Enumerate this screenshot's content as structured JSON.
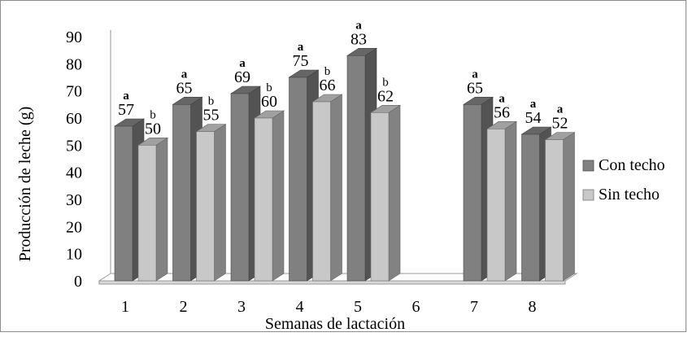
{
  "chart_data": {
    "type": "bar",
    "title": "",
    "xlabel": "Semanas de lactación",
    "ylabel": "Producción de leche (g)",
    "ylim": [
      0,
      90
    ],
    "yticks": [
      0,
      10,
      20,
      30,
      40,
      50,
      60,
      70,
      80,
      90
    ],
    "categories": [
      "1",
      "2",
      "3",
      "4",
      "5",
      "6",
      "7",
      "8"
    ],
    "series": [
      {
        "name": "Con techo",
        "color": "#808080",
        "values": [
          57,
          65,
          69,
          75,
          83,
          null,
          65,
          54
        ],
        "letters": [
          "a",
          "a",
          "a",
          "a",
          "a",
          "",
          "a",
          "a"
        ]
      },
      {
        "name": "Sin techo",
        "color": "#c8c8c8",
        "values": [
          50,
          55,
          60,
          66,
          62,
          null,
          56,
          52
        ],
        "letters": [
          "b",
          "b",
          "b",
          "b",
          "b",
          "",
          "a",
          "a"
        ]
      }
    ],
    "legend_position": "right",
    "grid": false,
    "style": "3d-clustered-column"
  }
}
